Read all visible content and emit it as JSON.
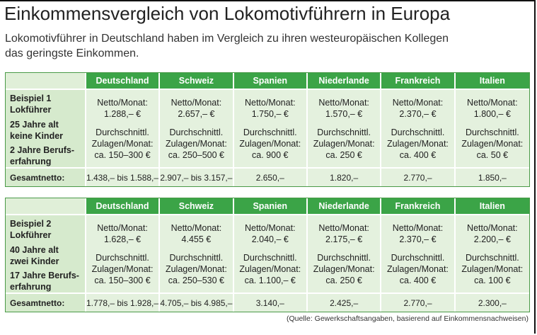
{
  "header": {
    "title": "Einkommensvergleich von Lokomotivführern in Europa",
    "subtitle": [
      "Lokomotivführer in Deutschland haben im Vergleich zu ihren westeuropäischen Kollegen",
      "das geringste Einkommen."
    ]
  },
  "tables": [
    {
      "columns": [
        "Deutschland",
        "Schweiz",
        "Spanien",
        "Niederlande",
        "Frankreich",
        "Italien"
      ],
      "profile": {
        "example": [
          "Beispiel 1",
          "Lokführer"
        ],
        "age": [
          "25 Jahre alt",
          "keine Kinder"
        ],
        "experience": [
          "2 Jahre Berufs-",
          "erfahrung"
        ]
      },
      "cells": [
        {
          "netto": [
            "Netto/Monat:",
            "1.288,– €"
          ],
          "zulagen": [
            "Durchschnittl.",
            "Zulagen/Monat:",
            "ca. 150–300 €"
          ]
        },
        {
          "netto": [
            "Netto/Monat:",
            "2.657,– €"
          ],
          "zulagen": [
            "Durchschnittl.",
            "Zulagen/Monat:",
            "ca. 250–500 €"
          ]
        },
        {
          "netto": [
            "Netto/Monat:",
            "1.750,– €"
          ],
          "zulagen": [
            "Durchschnittl.",
            "Zulagen/Monat:",
            "ca. 900 €"
          ]
        },
        {
          "netto": [
            "Netto/Monat:",
            "1.570,– €"
          ],
          "zulagen": [
            "Durchschnittl.",
            "Zulagen/Monat:",
            "ca. 250 €"
          ]
        },
        {
          "netto": [
            "Netto/Monat:",
            "2.370,– €"
          ],
          "zulagen": [
            "Durchschnittl.",
            "Zulagen/Monat:",
            "ca. 400 €"
          ]
        },
        {
          "netto": [
            "Netto/Monat:",
            "1.800,– €"
          ],
          "zulagen": [
            "Durchschnittl.",
            "Zulagen/Monat:",
            "ca. 50 €"
          ]
        }
      ],
      "total_label": "Gesamtnetto:",
      "totals": [
        "1.438,– bis 1.588,–",
        "2.907,– bis 3.157,–",
        "2.650,–",
        "1.820,–",
        "2.770,–",
        "1.850,–"
      ]
    },
    {
      "columns": [
        "Deutschland",
        "Schweiz",
        "Spanien",
        "Niederlande",
        "Frankreich",
        "Italien"
      ],
      "profile": {
        "example": [
          "Beispiel 2",
          "Lokführer"
        ],
        "age": [
          "40 Jahre alt",
          "zwei Kinder"
        ],
        "experience": [
          "17 Jahre Berufs-",
          "erfahrung"
        ]
      },
      "cells": [
        {
          "netto": [
            "Netto/Monat:",
            "1.628,– €"
          ],
          "zulagen": [
            "Durchschnittl.",
            "Zulagen/Monat:",
            "ca. 150–300 €"
          ]
        },
        {
          "netto": [
            "Netto/Monat:",
            "4.455 €"
          ],
          "zulagen": [
            "Durchschnittl.",
            "Zulagen/Monat:",
            "ca. 250–530 €"
          ]
        },
        {
          "netto": [
            "Netto/Monat:",
            "2.040,– €"
          ],
          "zulagen": [
            "Durchschnittl.",
            "Zulagen/Monat:",
            "ca. 1.100,– €"
          ]
        },
        {
          "netto": [
            "Netto/Monat:",
            "2.175,– €"
          ],
          "zulagen": [
            "Durchschnittl.",
            "Zulagen/Monat:",
            "ca. 250 €"
          ]
        },
        {
          "netto": [
            "Netto/Monat:",
            "2.370,– €"
          ],
          "zulagen": [
            "Durchschnittl.",
            "Zulagen/Monat:",
            "ca. 400 €"
          ]
        },
        {
          "netto": [
            "Netto/Monat:",
            "2.200,– €"
          ],
          "zulagen": [
            "Durchschnittl.",
            "Zulagen/Monat:",
            "ca. 100 €"
          ]
        }
      ],
      "total_label": "Gesamtnetto:",
      "totals": [
        "1.778,– bis 1.928,–",
        "4.705,– bis 4.985,–",
        "3.140,–",
        "2.425,–",
        "2.770,–",
        "2.300,–"
      ]
    }
  ],
  "source": "(Quelle: Gewerkschaftsangaben, basierend auf Einkommensnachweisen)"
}
